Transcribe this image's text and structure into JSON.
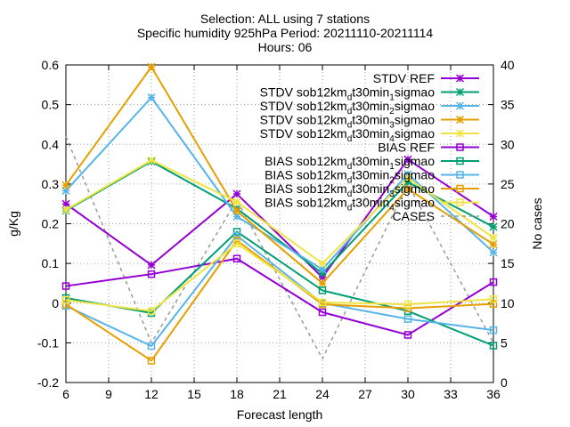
{
  "chart_data": {
    "type": "line",
    "title_lines": [
      "Selection: ALL using      7 stations",
      "Specific humidity 925hPa   Period: 20211110-20211114",
      "Hours: 06"
    ],
    "xlabel": "Forecast length",
    "ylabel": "g/Kg",
    "y2label": "No cases",
    "xlim": [
      6,
      36
    ],
    "ylim": [
      -0.2,
      0.6
    ],
    "y2lim": [
      0,
      40
    ],
    "xticks": [
      "6",
      "9",
      "12",
      "15",
      "18",
      "21",
      "24",
      "27",
      "30",
      "33",
      "36"
    ],
    "yticks": [
      "-0.2",
      "-0.1",
      "0",
      "0.1",
      "0.2",
      "0.3",
      "0.4",
      "0.5",
      "0.6"
    ],
    "y2ticks": [
      "0",
      "5",
      "10",
      "15",
      "20",
      "25",
      "30",
      "35",
      "40"
    ],
    "grid": true,
    "legend_position": "top-right",
    "x": [
      6,
      12,
      18,
      24,
      30,
      36
    ],
    "series": [
      {
        "name": "STDV REF",
        "label": {
          "pre": "STDV REF",
          "sub": "",
          "post": ""
        },
        "kind": "stdv",
        "marker": "star",
        "color": "#9400d3",
        "axis": "y",
        "values": [
          0.25,
          0.096,
          0.275,
          0.065,
          0.362,
          0.218
        ]
      },
      {
        "name": "STDV sob12km_dt30min_1sigmao",
        "label": {
          "pre": "STDV sob12km",
          "sub": "d",
          "post": "t30min",
          "sub2": "1",
          "post2": "sigmao"
        },
        "kind": "stdv",
        "marker": "star",
        "color": "#009e73",
        "axis": "y",
        "values": [
          0.233,
          0.357,
          0.238,
          0.075,
          0.305,
          0.192
        ]
      },
      {
        "name": "STDV sob12km_dt30min_2sigmao",
        "label": {
          "pre": "STDV sob12km",
          "sub": "d",
          "post": "t30min",
          "sub2": "2",
          "post2": "sigmao"
        },
        "kind": "stdv",
        "marker": "star",
        "color": "#56b4e9",
        "axis": "y",
        "values": [
          0.283,
          0.518,
          0.218,
          0.085,
          0.325,
          0.128
        ]
      },
      {
        "name": "STDV sob12km_dt30min_3sigmao",
        "label": {
          "pre": "STDV sob12km",
          "sub": "d",
          "post": "t30min",
          "sub2": "3",
          "post2": "sigmao"
        },
        "kind": "stdv",
        "marker": "star",
        "color": "#e69f00",
        "axis": "y",
        "values": [
          0.297,
          0.595,
          0.232,
          0.05,
          0.288,
          0.148
        ]
      },
      {
        "name": "STDV sob12km_dt30min_4sigmao",
        "label": {
          "pre": "STDV sob12km",
          "sub": "d",
          "post": "t30min",
          "sub2": "4",
          "post2": "sigmao"
        },
        "kind": "stdv",
        "marker": "star",
        "color": "#f0e442",
        "axis": "y",
        "values": [
          0.235,
          0.36,
          0.255,
          0.1,
          0.315,
          0.165
        ]
      },
      {
        "name": "BIAS REF",
        "label": {
          "pre": "BIAS REF",
          "sub": "",
          "post": ""
        },
        "kind": "bias",
        "marker": "square",
        "color": "#9400d3",
        "axis": "y",
        "values": [
          0.043,
          0.073,
          0.112,
          -0.023,
          -0.08,
          0.053
        ]
      },
      {
        "name": "BIAS sob12km_dt30min_1sigmao",
        "label": {
          "pre": "BIAS sob12km",
          "sub": "d",
          "post": "t30min",
          "sub2": "1",
          "post2": "sigmao"
        },
        "kind": "bias",
        "marker": "square",
        "color": "#009e73",
        "axis": "y",
        "values": [
          0.013,
          -0.025,
          0.18,
          0.032,
          -0.02,
          -0.107
        ]
      },
      {
        "name": "BIAS sob12km_dt30min_2sigmao",
        "label": {
          "pre": "BIAS sob12km",
          "sub": "d",
          "post": "t30min",
          "sub2": "2",
          "post2": "sigmao"
        },
        "kind": "bias",
        "marker": "square",
        "color": "#56b4e9",
        "axis": "y",
        "values": [
          -0.007,
          -0.108,
          0.17,
          0.0,
          -0.04,
          -0.068
        ]
      },
      {
        "name": "BIAS sob12km_dt30min_3sigmao",
        "label": {
          "pre": "BIAS sob12km",
          "sub": "d",
          "post": "t30min",
          "sub2": "3",
          "post2": "sigmao"
        },
        "kind": "bias",
        "marker": "square",
        "color": "#e69f00",
        "axis": "y",
        "values": [
          -0.003,
          -0.145,
          0.158,
          -0.003,
          -0.013,
          -0.002
        ]
      },
      {
        "name": "BIAS sob12km_dt30min_4sigmao",
        "label": {
          "pre": "BIAS sob12km",
          "sub": "d",
          "post": "t30min",
          "sub2": "4",
          "post2": "sigmao"
        },
        "kind": "bias",
        "marker": "square",
        "color": "#f0e442",
        "axis": "y",
        "values": [
          0.008,
          -0.02,
          0.15,
          0.002,
          -0.003,
          0.01
        ]
      },
      {
        "name": "CASES",
        "label": {
          "pre": "CASES",
          "sub": "",
          "post": ""
        },
        "kind": "cases",
        "marker": "none",
        "color": "#999999",
        "axis": "y2",
        "values": [
          31,
          5,
          23,
          3,
          25,
          5
        ]
      }
    ]
  }
}
